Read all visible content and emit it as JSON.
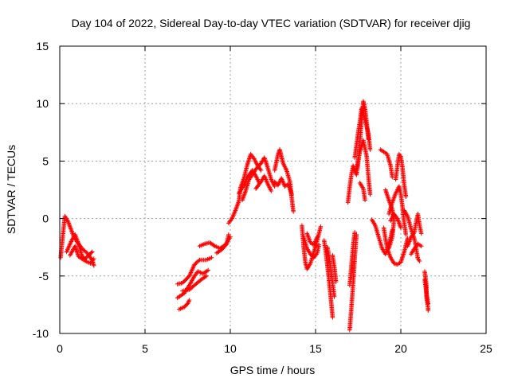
{
  "chart_data": {
    "type": "scatter",
    "title": "Day 104 of 2022, Sidereal Day-to-day VTEC variation (SDTVAR) for receiver djig",
    "xlabel": "GPS time / hours",
    "ylabel": "SDTVAR / TECUs",
    "xlim": [
      0,
      25
    ],
    "ylim": [
      -10,
      15
    ],
    "xticks": [
      0,
      5,
      10,
      15,
      20,
      25
    ],
    "yticks": [
      -10,
      -5,
      0,
      5,
      10,
      15
    ],
    "xtick_labels": [
      "0",
      "5",
      "10",
      "15",
      "20",
      "25"
    ],
    "ytick_labels": [
      "-10",
      "-5",
      "0",
      "5",
      "10",
      "15"
    ],
    "grid": true,
    "marker": "+",
    "series": [
      {
        "name": "SDTVAR",
        "color": "#ff0000",
        "tracks": [
          [
            [
              0.05,
              -3.4
            ],
            [
              0.2,
              -1.2
            ],
            [
              0.3,
              0.2
            ],
            [
              0.5,
              -0.3
            ],
            [
              0.8,
              -1.5
            ],
            [
              1.0,
              -2.0
            ],
            [
              1.3,
              -2.6
            ],
            [
              1.6,
              -3.0
            ],
            [
              1.9,
              -3.6
            ],
            [
              2.0,
              -4.1
            ]
          ],
          [
            [
              0.4,
              -2.9
            ],
            [
              0.7,
              -1.9
            ],
            [
              0.9,
              -1.4
            ],
            [
              1.1,
              -2.2
            ],
            [
              1.3,
              -3.2
            ],
            [
              1.5,
              -3.7
            ],
            [
              1.8,
              -3.9
            ],
            [
              2.0,
              -3.5
            ]
          ],
          [
            [
              0.6,
              -3.2
            ],
            [
              0.9,
              -2.4
            ],
            [
              1.1,
              -3.3
            ],
            [
              1.4,
              -3.6
            ],
            [
              1.7,
              -3.2
            ],
            [
              1.9,
              -2.9
            ]
          ],
          [
            [
              6.9,
              -5.7
            ],
            [
              7.2,
              -5.6
            ],
            [
              7.6,
              -5.0
            ],
            [
              7.9,
              -4.0
            ],
            [
              8.2,
              -3.6
            ],
            [
              8.6,
              -3.6
            ],
            [
              8.9,
              -3.4
            ]
          ],
          [
            [
              6.9,
              -6.9
            ],
            [
              7.3,
              -6.5
            ],
            [
              7.6,
              -5.8
            ],
            [
              7.9,
              -5.0
            ],
            [
              8.1,
              -4.6
            ],
            [
              8.4,
              -4.8
            ],
            [
              8.7,
              -4.5
            ]
          ],
          [
            [
              7.0,
              -7.9
            ],
            [
              7.3,
              -7.7
            ],
            [
              7.5,
              -7.4
            ],
            [
              7.6,
              -7.1
            ]
          ],
          [
            [
              7.2,
              -6.3
            ],
            [
              7.6,
              -6.2
            ],
            [
              7.9,
              -5.8
            ],
            [
              8.3,
              -5.3
            ],
            [
              8.6,
              -5.0
            ]
          ],
          [
            [
              8.2,
              -2.4
            ],
            [
              8.5,
              -2.2
            ],
            [
              8.8,
              -2.1
            ],
            [
              9.1,
              -2.4
            ],
            [
              9.4,
              -2.6
            ],
            [
              9.7,
              -2.3
            ],
            [
              10.0,
              -1.6
            ]
          ],
          [
            [
              9.2,
              -3.0
            ],
            [
              9.5,
              -2.7
            ],
            [
              9.8,
              -2.2
            ],
            [
              9.9,
              -1.4
            ]
          ],
          [
            [
              9.9,
              -0.4
            ],
            [
              10.1,
              0.0
            ],
            [
              10.3,
              0.7
            ],
            [
              10.5,
              1.5
            ],
            [
              10.6,
              2.7
            ],
            [
              10.8,
              3.5
            ],
            [
              11.0,
              4.7
            ],
            [
              11.2,
              5.6
            ],
            [
              11.4,
              5.2
            ],
            [
              11.6,
              4.6
            ],
            [
              11.8,
              4.2
            ]
          ],
          [
            [
              10.7,
              1.6
            ],
            [
              10.9,
              2.4
            ],
            [
              11.1,
              3.4
            ],
            [
              11.3,
              3.8
            ],
            [
              11.5,
              4.3
            ],
            [
              11.8,
              4.8
            ],
            [
              12.0,
              5.3
            ],
            [
              12.2,
              4.4
            ],
            [
              12.4,
              3.4
            ],
            [
              12.6,
              2.8
            ]
          ],
          [
            [
              10.5,
              2.2
            ],
            [
              10.8,
              2.9
            ],
            [
              11.0,
              3.6
            ],
            [
              11.3,
              4.2
            ],
            [
              11.5,
              3.7
            ],
            [
              11.7,
              3.1
            ]
          ],
          [
            [
              11.5,
              2.6
            ],
            [
              11.8,
              3.2
            ],
            [
              12.0,
              3.7
            ],
            [
              12.2,
              3.0
            ],
            [
              12.4,
              2.4
            ]
          ],
          [
            [
              12.6,
              4.2
            ],
            [
              12.8,
              5.6
            ],
            [
              12.9,
              6.0
            ],
            [
              13.0,
              5.4
            ],
            [
              13.1,
              4.8
            ],
            [
              13.3,
              4.2
            ],
            [
              13.5,
              3.2
            ],
            [
              13.6,
              1.8
            ],
            [
              13.7,
              0.6
            ]
          ],
          [
            [
              12.6,
              3.2
            ],
            [
              12.8,
              2.9
            ],
            [
              13.0,
              3.5
            ],
            [
              13.2,
              2.8
            ],
            [
              13.4,
              3.0
            ],
            [
              13.6,
              2.1
            ]
          ],
          [
            [
              14.2,
              -0.6
            ],
            [
              14.3,
              -2.4
            ],
            [
              14.4,
              -3.8
            ],
            [
              14.5,
              -4.4
            ],
            [
              14.7,
              -3.9
            ],
            [
              14.9,
              -2.9
            ],
            [
              15.1,
              -1.9
            ],
            [
              15.3,
              -0.7
            ]
          ],
          [
            [
              14.3,
              -1.6
            ],
            [
              14.5,
              -2.6
            ],
            [
              14.7,
              -3.1
            ],
            [
              14.9,
              -3.4
            ],
            [
              15.1,
              -3.0
            ],
            [
              15.2,
              -2.3
            ]
          ],
          [
            [
              14.5,
              -1.3
            ],
            [
              14.7,
              -2.1
            ],
            [
              14.9,
              -2.3
            ],
            [
              15.1,
              -1.6
            ]
          ],
          [
            [
              15.5,
              -1.9
            ],
            [
              15.6,
              -2.9
            ],
            [
              15.7,
              -4.2
            ],
            [
              15.8,
              -5.5
            ],
            [
              15.9,
              -7.0
            ],
            [
              16.0,
              -8.6
            ]
          ],
          [
            [
              15.7,
              -2.5
            ],
            [
              15.8,
              -3.4
            ],
            [
              15.9,
              -4.5
            ],
            [
              16.0,
              -5.6
            ],
            [
              16.1,
              -6.8
            ]
          ],
          [
            [
              16.0,
              -3.2
            ],
            [
              16.1,
              -4.2
            ],
            [
              16.2,
              -5.5
            ]
          ],
          [
            [
              17.0,
              -9.7
            ],
            [
              17.1,
              -7.8
            ],
            [
              17.2,
              -5.7
            ],
            [
              17.3,
              -3.4
            ],
            [
              17.4,
              -1.4
            ]
          ],
          [
            [
              17.0,
              -5.8
            ],
            [
              17.1,
              -4.1
            ],
            [
              17.2,
              -2.4
            ],
            [
              17.3,
              -1.2
            ]
          ],
          [
            [
              16.9,
              1.4
            ],
            [
              17.0,
              2.7
            ],
            [
              17.1,
              3.8
            ],
            [
              17.2,
              4.6
            ],
            [
              17.3,
              4.2
            ],
            [
              17.4,
              3.8
            ],
            [
              17.5,
              4.8
            ],
            [
              17.6,
              6.6
            ],
            [
              17.7,
              8.6
            ],
            [
              17.8,
              10.2
            ],
            [
              17.9,
              9.6
            ],
            [
              18.0,
              8.3
            ],
            [
              18.1,
              6.9
            ]
          ],
          [
            [
              17.3,
              5.3
            ],
            [
              17.4,
              6.4
            ],
            [
              17.5,
              7.5
            ],
            [
              17.6,
              8.4
            ],
            [
              17.7,
              9.6
            ],
            [
              17.9,
              8.6
            ],
            [
              18.1,
              7.4
            ],
            [
              18.2,
              6.0
            ]
          ],
          [
            [
              17.4,
              4.4
            ],
            [
              17.6,
              5.8
            ],
            [
              17.8,
              6.8
            ],
            [
              18.0,
              5.4
            ],
            [
              18.1,
              3.6
            ],
            [
              18.2,
              2.1
            ]
          ],
          [
            [
              17.6,
              3.1
            ],
            [
              17.8,
              2.6
            ],
            [
              17.9,
              1.6
            ]
          ],
          [
            [
              18.3,
              -0.1
            ],
            [
              18.5,
              -0.6
            ],
            [
              18.7,
              -1.6
            ],
            [
              18.9,
              -2.6
            ],
            [
              19.1,
              -3.1
            ],
            [
              19.3,
              -2.3
            ],
            [
              19.5,
              -1.0
            ]
          ],
          [
            [
              18.8,
              6.0
            ],
            [
              19.0,
              5.8
            ],
            [
              19.2,
              5.6
            ],
            [
              19.4,
              4.6
            ],
            [
              19.5,
              3.6
            ]
          ],
          [
            [
              19.1,
              2.5
            ],
            [
              19.3,
              1.6
            ],
            [
              19.5,
              0.8
            ],
            [
              19.6,
              -0.2
            ],
            [
              19.5,
              -1.6
            ],
            [
              19.3,
              -2.6
            ]
          ],
          [
            [
              19.0,
              -0.8
            ],
            [
              19.1,
              -1.8
            ],
            [
              19.2,
              -2.6
            ],
            [
              19.4,
              -3.4
            ],
            [
              19.6,
              -3.9
            ],
            [
              19.8,
              -4.0
            ],
            [
              20.0,
              -3.8
            ],
            [
              20.2,
              -2.9
            ],
            [
              20.4,
              -1.7
            ]
          ],
          [
            [
              19.3,
              0.4
            ],
            [
              19.5,
              1.4
            ],
            [
              19.7,
              2.2
            ],
            [
              19.9,
              2.8
            ],
            [
              20.0,
              2.1
            ],
            [
              20.1,
              1.0
            ],
            [
              20.2,
              -0.4
            ],
            [
              20.3,
              -1.4
            ]
          ],
          [
            [
              19.4,
              -0.2
            ],
            [
              19.6,
              0.4
            ],
            [
              19.8,
              0.0
            ],
            [
              20.0,
              -0.8
            ]
          ],
          [
            [
              19.7,
              3.4
            ],
            [
              19.8,
              4.6
            ],
            [
              19.9,
              5.6
            ],
            [
              20.0,
              5.4
            ],
            [
              20.1,
              4.4
            ],
            [
              20.2,
              2.9
            ],
            [
              20.3,
              1.9
            ]
          ],
          [
            [
              20.2,
              0.7
            ],
            [
              20.4,
              0.2
            ],
            [
              20.6,
              -0.9
            ],
            [
              20.8,
              -1.8
            ],
            [
              20.9,
              -2.6
            ],
            [
              21.0,
              -3.5
            ],
            [
              21.1,
              -3.7
            ]
          ],
          [
            [
              20.4,
              -2.4
            ],
            [
              20.6,
              -1.6
            ],
            [
              20.8,
              -1.2
            ],
            [
              20.9,
              -0.3
            ],
            [
              21.0,
              0.4
            ],
            [
              21.1,
              -0.6
            ],
            [
              21.2,
              -1.3
            ]
          ],
          [
            [
              20.6,
              -3.1
            ],
            [
              20.8,
              -2.6
            ],
            [
              21.0,
              -2.2
            ],
            [
              21.2,
              -2.4
            ]
          ],
          [
            [
              21.4,
              -4.6
            ],
            [
              21.5,
              -5.8
            ],
            [
              21.5,
              -6.8
            ],
            [
              21.6,
              -7.8
            ],
            [
              21.6,
              -8.0
            ]
          ],
          [
            [
              21.4,
              -5.3
            ],
            [
              21.5,
              -6.4
            ],
            [
              21.6,
              -7.4
            ]
          ]
        ]
      }
    ]
  }
}
